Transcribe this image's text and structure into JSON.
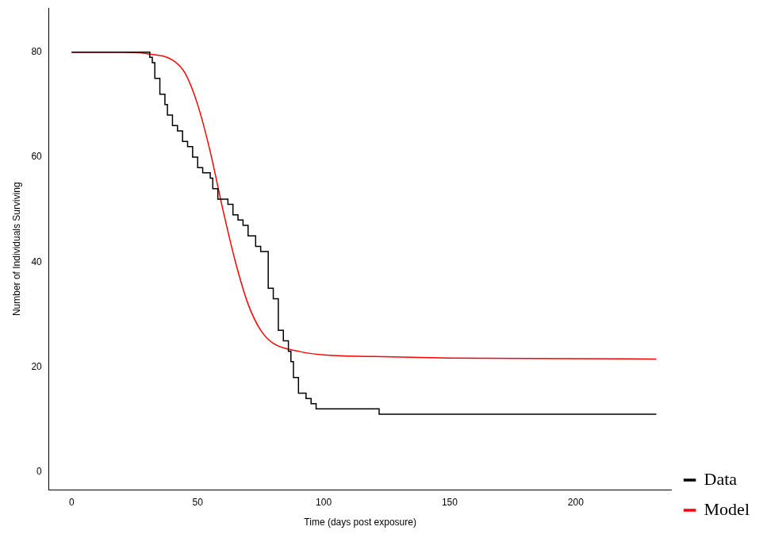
{
  "chart_data": {
    "type": "line",
    "x_label": "Time (days post exposure)",
    "y_label": "Number of Individuals Surviving",
    "xlim": [
      -9,
      238
    ],
    "xticks": [
      0,
      50,
      100,
      150,
      200
    ],
    "ylim": [
      -3.4,
      88.4
    ],
    "yticks": [
      0,
      20,
      40,
      60,
      80
    ],
    "grid": false,
    "legend": "right",
    "series": [
      {
        "name": "Data",
        "color": "#000000",
        "line_style": "step",
        "x": [
          0,
          30,
          31,
          32,
          33,
          35,
          37,
          38,
          40,
          42,
          44,
          46,
          48,
          50,
          52,
          55,
          56,
          58,
          62,
          64,
          66,
          68,
          70,
          73,
          75,
          78,
          80,
          82,
          84,
          86,
          87,
          88,
          90,
          93,
          95,
          97,
          122,
          232
        ],
        "values": [
          80,
          80,
          79,
          78,
          75,
          72,
          70,
          68,
          66,
          65,
          63,
          62,
          60,
          58,
          57,
          56,
          54,
          52,
          51,
          49,
          48,
          47,
          45,
          43,
          42,
          35,
          33,
          27,
          25,
          23,
          21,
          18,
          15,
          14,
          13,
          12,
          11,
          11
        ]
      },
      {
        "name": "Model",
        "color": "#ff0000",
        "line_style": "solid",
        "x": [
          0,
          20,
          30,
          40,
          45,
          50,
          55,
          60,
          65,
          70,
          75,
          80,
          90,
          100,
          120,
          150,
          200,
          232
        ],
        "values": [
          80,
          80,
          79.7,
          78.5,
          76,
          70,
          61,
          50,
          40,
          32,
          27,
          24.5,
          23,
          22.3,
          22,
          21.7,
          21.6,
          21.5
        ]
      }
    ]
  }
}
